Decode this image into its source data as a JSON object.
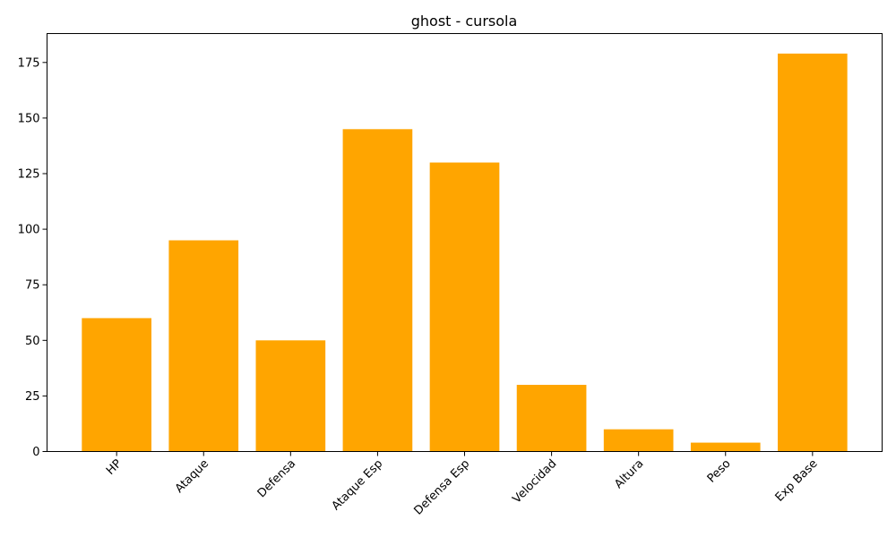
{
  "chart_data": {
    "type": "bar",
    "title": "ghost - cursola",
    "xlabel": "",
    "ylabel": "",
    "categories": [
      "HP",
      "Ataque",
      "Defensa",
      "Ataque Esp",
      "Defensa Esp",
      "Velocidad",
      "Altura",
      "Peso",
      "Exp Base"
    ],
    "values": [
      60,
      95,
      50,
      145,
      130,
      30,
      10,
      4,
      179
    ],
    "ylim": [
      0,
      188
    ],
    "yticks": [
      0,
      25,
      50,
      75,
      100,
      125,
      150,
      175
    ],
    "bar_color": "#FFA500",
    "grid": false,
    "legend": "none"
  }
}
